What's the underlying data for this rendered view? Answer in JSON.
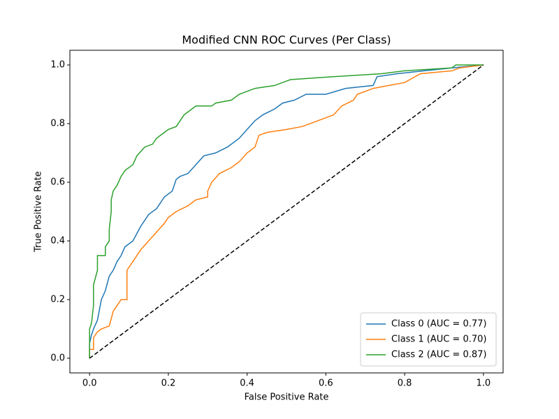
{
  "chart_data": {
    "type": "line",
    "title": "Modified CNN ROC Curves (Per Class)",
    "xlabel": "False Positive Rate",
    "ylabel": "True Positive Rate",
    "xlim": [
      -0.05,
      1.05
    ],
    "ylim": [
      -0.05,
      1.05
    ],
    "xticks": [
      {
        "value": 0,
        "label": "0.0"
      },
      0.2,
      0.4,
      0.6,
      0.8,
      {
        "value": 1,
        "label": "1.0"
      }
    ],
    "yticks": [
      {
        "value": 0,
        "label": "0.0"
      },
      0.2,
      0.4,
      0.6,
      0.8,
      {
        "value": 1,
        "label": "1.0"
      }
    ],
    "legend": "lower right",
    "series": [
      {
        "name": "Class 0 (AUC = 0.77)",
        "color": "#1f77b4",
        "x": [
          0,
          0,
          0.005,
          0.01,
          0.02,
          0.03,
          0.04,
          0.05,
          0.06,
          0.07,
          0.08,
          0.09,
          0.11,
          0.13,
          0.15,
          0.17,
          0.19,
          0.21,
          0.22,
          0.23,
          0.25,
          0.27,
          0.29,
          0.32,
          0.35,
          0.38,
          0.4,
          0.42,
          0.44,
          0.47,
          0.49,
          0.52,
          0.55,
          0.6,
          0.65,
          0.72,
          0.73,
          0.78,
          0.85,
          0.92,
          1
        ],
        "values": [
          0,
          0.05,
          0.08,
          0.1,
          0.13,
          0.2,
          0.23,
          0.28,
          0.3,
          0.33,
          0.35,
          0.38,
          0.4,
          0.45,
          0.49,
          0.51,
          0.55,
          0.57,
          0.61,
          0.62,
          0.63,
          0.66,
          0.69,
          0.7,
          0.72,
          0.75,
          0.78,
          0.81,
          0.83,
          0.85,
          0.87,
          0.88,
          0.9,
          0.9,
          0.92,
          0.93,
          0.96,
          0.97,
          0.98,
          0.99,
          1
        ]
      },
      {
        "name": "Class 1 (AUC = 0.70)",
        "color": "#ff7f0e",
        "x": [
          0,
          0,
          0.01,
          0.01,
          0.02,
          0.03,
          0.05,
          0.06,
          0.07,
          0.08,
          0.095,
          0.095,
          0.11,
          0.13,
          0.15,
          0.17,
          0.19,
          0.2,
          0.22,
          0.25,
          0.27,
          0.3,
          0.3,
          0.31,
          0.33,
          0.36,
          0.38,
          0.4,
          0.42,
          0.43,
          0.45,
          0.5,
          0.54,
          0.58,
          0.62,
          0.64,
          0.67,
          0.68,
          0.72,
          0.76,
          0.8,
          0.84,
          0.92,
          0.94,
          1
        ],
        "values": [
          0,
          0.03,
          0.03,
          0.07,
          0.09,
          0.1,
          0.11,
          0.16,
          0.18,
          0.2,
          0.2,
          0.3,
          0.33,
          0.37,
          0.4,
          0.43,
          0.46,
          0.48,
          0.5,
          0.52,
          0.54,
          0.55,
          0.57,
          0.6,
          0.63,
          0.65,
          0.67,
          0.7,
          0.72,
          0.76,
          0.77,
          0.78,
          0.79,
          0.81,
          0.83,
          0.86,
          0.88,
          0.9,
          0.92,
          0.93,
          0.94,
          0.97,
          0.98,
          0.99,
          1
        ]
      },
      {
        "name": "Class 2 (AUC = 0.87)",
        "color": "#2ca02c",
        "x": [
          0,
          0,
          0.005,
          0.01,
          0.01,
          0.02,
          0.02,
          0.04,
          0.04,
          0.05,
          0.05,
          0.055,
          0.055,
          0.06,
          0.07,
          0.08,
          0.09,
          0.11,
          0.12,
          0.14,
          0.16,
          0.17,
          0.19,
          0.2,
          0.22,
          0.23,
          0.24,
          0.26,
          0.27,
          0.31,
          0.32,
          0.36,
          0.38,
          0.4,
          0.42,
          0.47,
          0.49,
          0.51,
          0.62,
          0.74,
          0.8,
          0.92,
          0.93,
          1
        ],
        "values": [
          0,
          0.1,
          0.12,
          0.18,
          0.25,
          0.3,
          0.35,
          0.35,
          0.38,
          0.4,
          0.44,
          0.5,
          0.54,
          0.57,
          0.59,
          0.62,
          0.64,
          0.66,
          0.69,
          0.72,
          0.73,
          0.75,
          0.77,
          0.78,
          0.79,
          0.81,
          0.83,
          0.85,
          0.86,
          0.86,
          0.87,
          0.88,
          0.9,
          0.91,
          0.92,
          0.93,
          0.94,
          0.95,
          0.96,
          0.97,
          0.98,
          0.99,
          1,
          1
        ]
      },
      {
        "color": "#000000",
        "dashed": true,
        "x": [
          0,
          1
        ],
        "values": [
          0,
          1
        ]
      }
    ]
  }
}
